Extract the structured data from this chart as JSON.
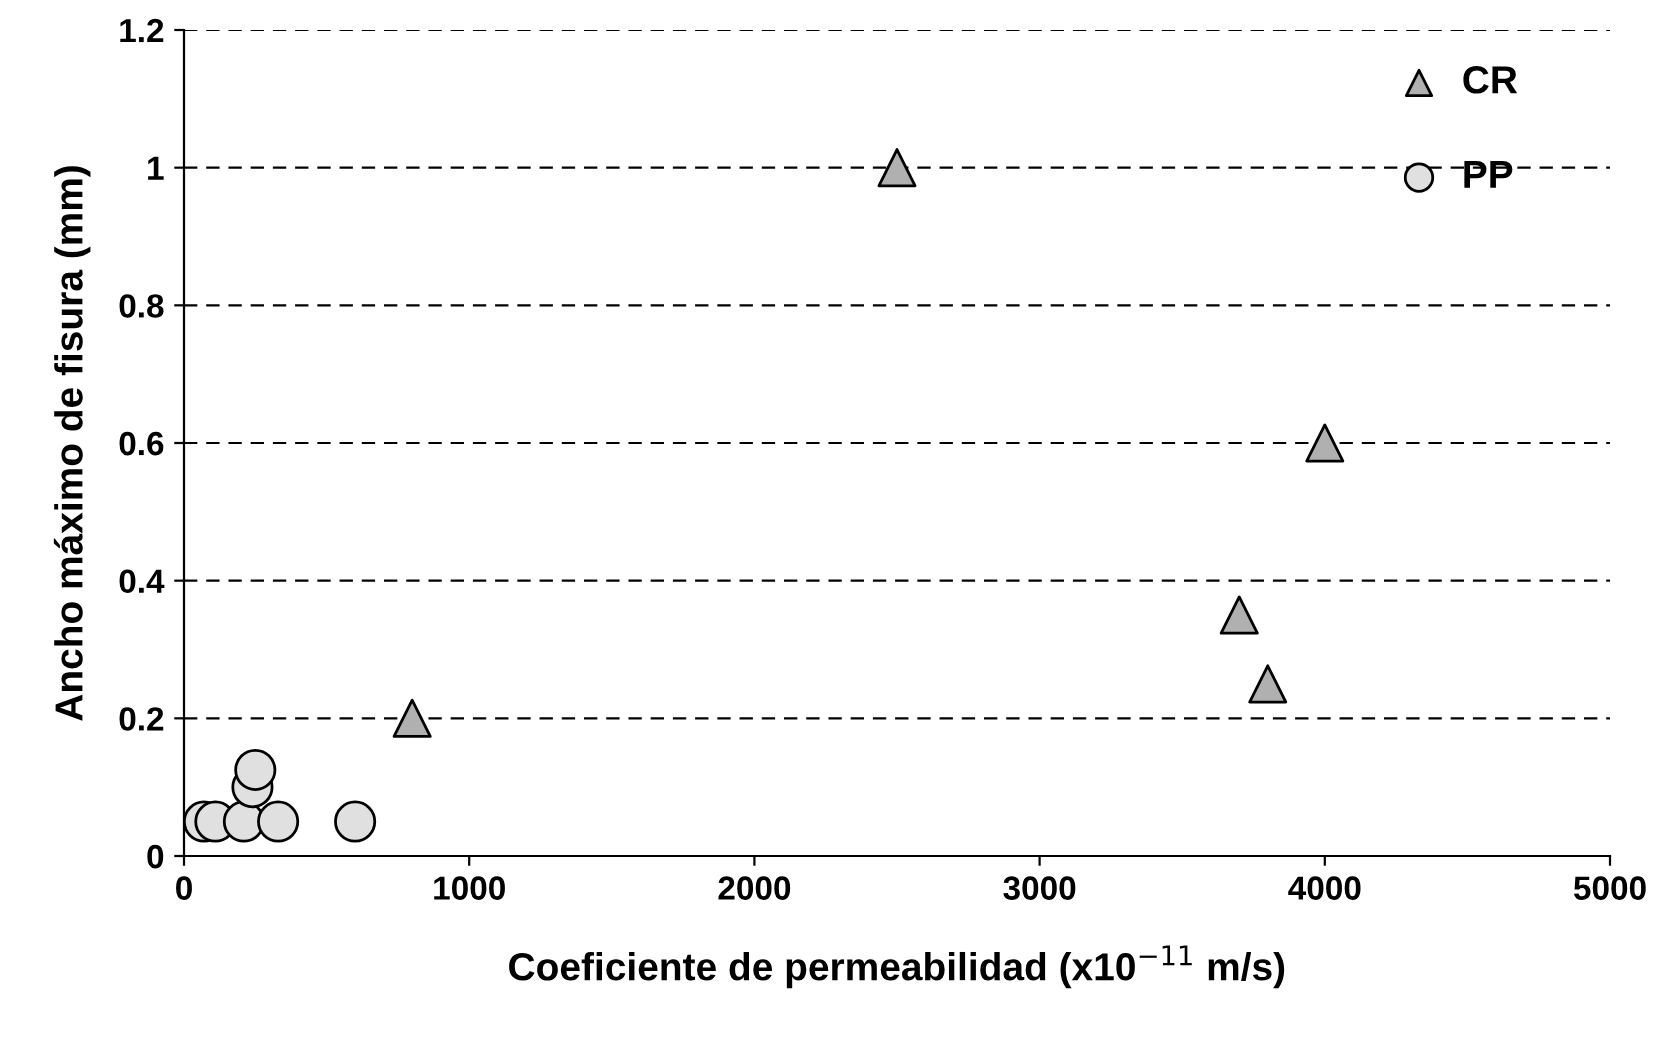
{
  "chart_data": {
    "type": "scatter",
    "xlabel": "Coeficiente de permeabilidad (x10$^{−11}$ m/s)",
    "ylabel": "Ancho máximo de fisura (mm)",
    "series": [
      {
        "name": "CR",
        "color": "#b0b0b0",
        "marker": "triangle",
        "x": [
          800,
          2500,
          4000,
          3700,
          3800
        ],
        "values": [
          0.2,
          1.0,
          0.6,
          0.35,
          0.25
        ]
      },
      {
        "name": "PP",
        "color": "#e0e0e0",
        "marker": "circle",
        "x": [
          70,
          110,
          210,
          330,
          600,
          240,
          250
        ],
        "values": [
          0.05,
          0.05,
          0.05,
          0.05,
          0.05,
          0.1,
          0.125
        ]
      }
    ],
    "xlim": [
      0,
      5000
    ],
    "xticks": [
      0,
      1000,
      2000,
      3000,
      4000,
      5000
    ],
    "ylim": [
      0,
      1.2
    ],
    "yticks": [
      0,
      {
        "value": 0.2,
        "label": "0.2"
      },
      {
        "value": 0.4,
        "label": "0.4"
      },
      {
        "value": 0.6,
        "label": "0.6"
      },
      {
        "value": 0.8,
        "label": "0.8"
      },
      1,
      {
        "value": 1.2,
        "label": "1.2"
      }
    ],
    "grid": "y",
    "legend": "top right"
  }
}
